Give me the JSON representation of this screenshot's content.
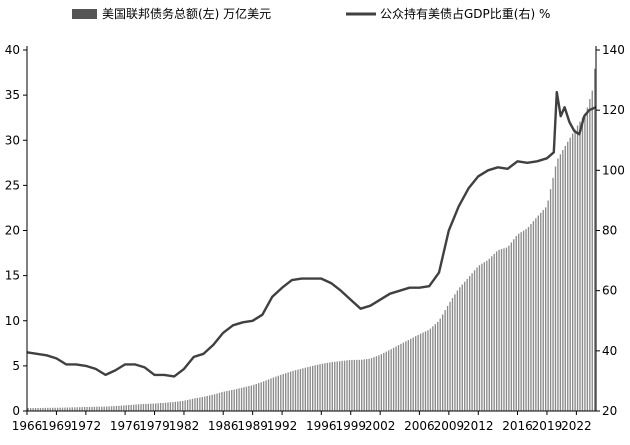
{
  "chart_data": {
    "type": "bar+line",
    "legend": [
      {
        "label": "美国联邦债务总额(左)  万亿美元",
        "symbol": "bar",
        "color": "#555555"
      },
      {
        "label": "公众持有美债占GDP比重(右)  %",
        "symbol": "line",
        "color": "#404040"
      }
    ],
    "x_tick_labels": [
      "1966",
      "1969",
      "1972",
      "1976",
      "1979",
      "1982",
      "1986",
      "1989",
      "1992",
      "1996",
      "1999",
      "2002",
      "2006",
      "2009",
      "2012",
      "2016",
      "2019",
      "2022"
    ],
    "x_range": [
      1966,
      2024
    ],
    "y_left": {
      "ticks": [
        "0",
        "5",
        "10",
        "15",
        "20",
        "25",
        "30",
        "35",
        "40"
      ],
      "range": [
        0,
        40
      ]
    },
    "y_right": {
      "ticks": [
        "20",
        "40",
        "60",
        "80",
        "100",
        "120",
        "140"
      ],
      "range": [
        20,
        140
      ]
    },
    "colors": {
      "bars": "#8a8a8a",
      "line": "#404040",
      "axis": "#000000"
    },
    "series": [
      {
        "name": "美国联邦债务总额(左)",
        "axis": "left",
        "kind": "bar",
        "points": [
          [
            1966,
            0.32
          ],
          [
            1967,
            0.33
          ],
          [
            1968,
            0.35
          ],
          [
            1969,
            0.36
          ],
          [
            1970,
            0.38
          ],
          [
            1971,
            0.41
          ],
          [
            1972,
            0.44
          ],
          [
            1973,
            0.47
          ],
          [
            1974,
            0.49
          ],
          [
            1975,
            0.54
          ],
          [
            1976,
            0.63
          ],
          [
            1977,
            0.71
          ],
          [
            1978,
            0.78
          ],
          [
            1979,
            0.83
          ],
          [
            1980,
            0.91
          ],
          [
            1981,
            1.0
          ],
          [
            1982,
            1.14
          ],
          [
            1983,
            1.38
          ],
          [
            1984,
            1.57
          ],
          [
            1985,
            1.82
          ],
          [
            1986,
            2.13
          ],
          [
            1987,
            2.35
          ],
          [
            1988,
            2.6
          ],
          [
            1989,
            2.86
          ],
          [
            1990,
            3.23
          ],
          [
            1991,
            3.67
          ],
          [
            1992,
            4.06
          ],
          [
            1993,
            4.41
          ],
          [
            1994,
            4.69
          ],
          [
            1995,
            4.97
          ],
          [
            1996,
            5.22
          ],
          [
            1997,
            5.41
          ],
          [
            1998,
            5.53
          ],
          [
            1999,
            5.66
          ],
          [
            2000,
            5.67
          ],
          [
            2001,
            5.81
          ],
          [
            2002,
            6.23
          ],
          [
            2003,
            6.78
          ],
          [
            2004,
            7.38
          ],
          [
            2005,
            7.93
          ],
          [
            2006,
            8.51
          ],
          [
            2007,
            9.01
          ],
          [
            2008,
            10.0
          ],
          [
            2009,
            11.9
          ],
          [
            2010,
            13.56
          ],
          [
            2011,
            14.79
          ],
          [
            2012,
            16.07
          ],
          [
            2013,
            16.74
          ],
          [
            2014,
            17.82
          ],
          [
            2015,
            18.15
          ],
          [
            2016,
            19.57
          ],
          [
            2017,
            20.24
          ],
          [
            2018,
            21.52
          ],
          [
            2019,
            22.72
          ],
          [
            2020,
            27.75
          ],
          [
            2021,
            29.62
          ],
          [
            2022,
            31.42
          ],
          [
            2023,
            33.17
          ],
          [
            2023.75,
            36.0
          ],
          [
            2024,
            40.0
          ]
        ]
      },
      {
        "name": "公众持有美债占GDP比重(右)",
        "axis": "right",
        "kind": "line",
        "points": [
          [
            1966,
            39.5
          ],
          [
            1967,
            39
          ],
          [
            1968,
            38.5
          ],
          [
            1969,
            37.5
          ],
          [
            1970,
            35.5
          ],
          [
            1971,
            35.5
          ],
          [
            1972,
            35
          ],
          [
            1973,
            34
          ],
          [
            1974,
            32
          ],
          [
            1975,
            33.5
          ],
          [
            1976,
            35.5
          ],
          [
            1977,
            35.5
          ],
          [
            1978,
            34.5
          ],
          [
            1979,
            32
          ],
          [
            1980,
            32
          ],
          [
            1981,
            31.5
          ],
          [
            1982,
            34
          ],
          [
            1983,
            38
          ],
          [
            1984,
            39
          ],
          [
            1985,
            42
          ],
          [
            1986,
            46
          ],
          [
            1987,
            48.5
          ],
          [
            1988,
            49.5
          ],
          [
            1989,
            50
          ],
          [
            1990,
            52
          ],
          [
            1991,
            58
          ],
          [
            1992,
            61
          ],
          [
            1993,
            63.5
          ],
          [
            1994,
            64
          ],
          [
            1995,
            64
          ],
          [
            1996,
            64
          ],
          [
            1997,
            62.5
          ],
          [
            1998,
            60
          ],
          [
            1999,
            57
          ],
          [
            2000,
            54
          ],
          [
            2001,
            55
          ],
          [
            2002,
            57
          ],
          [
            2003,
            59
          ],
          [
            2004,
            60
          ],
          [
            2005,
            61
          ],
          [
            2006,
            61
          ],
          [
            2007,
            61.5
          ],
          [
            2008,
            66
          ],
          [
            2009,
            80
          ],
          [
            2010,
            88
          ],
          [
            2011,
            94
          ],
          [
            2012,
            98
          ],
          [
            2013,
            100
          ],
          [
            2014,
            101
          ],
          [
            2015,
            100.5
          ],
          [
            2016,
            103
          ],
          [
            2017,
            102.5
          ],
          [
            2018,
            103
          ],
          [
            2019,
            104
          ],
          [
            2019.7,
            106
          ],
          [
            2020,
            126
          ],
          [
            2020.4,
            118
          ],
          [
            2020.8,
            121
          ],
          [
            2021.3,
            116
          ],
          [
            2021.8,
            113
          ],
          [
            2022.3,
            112
          ],
          [
            2022.8,
            118
          ],
          [
            2023.3,
            120
          ],
          [
            2024,
            121
          ]
        ]
      }
    ]
  }
}
